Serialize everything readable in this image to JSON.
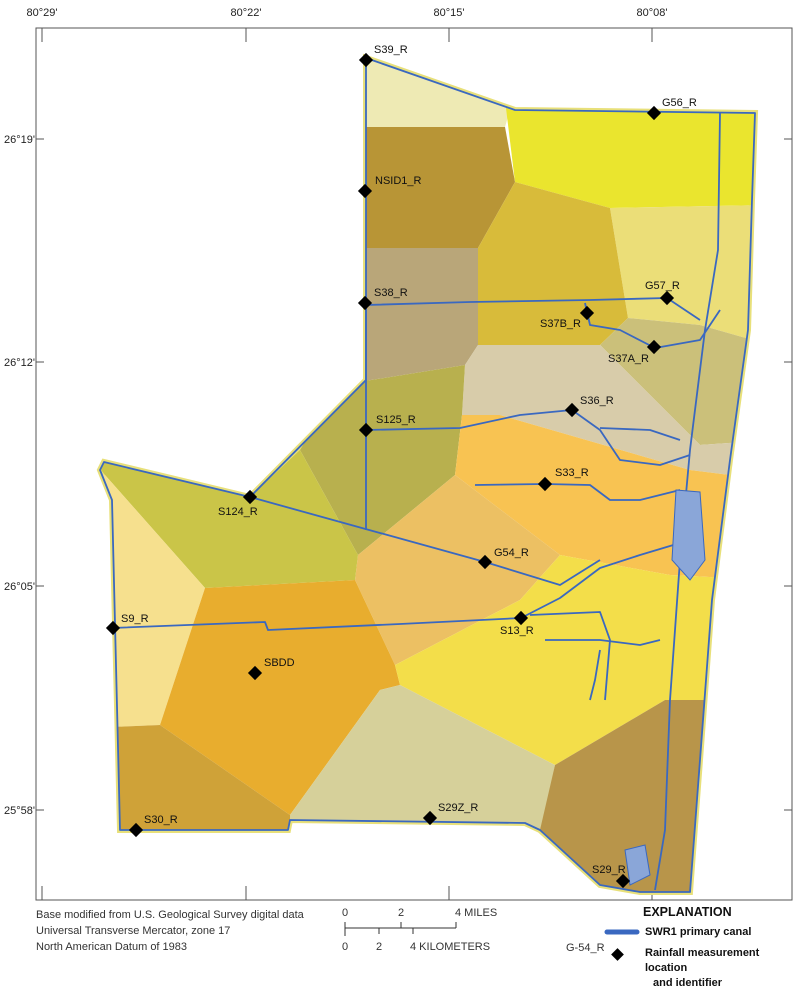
{
  "map": {
    "longitude_ticks": [
      "80°29'",
      "80°22'",
      "80°15'",
      "80°08'"
    ],
    "latitude_ticks": [
      "26°19'",
      "26°12'",
      "26°05'",
      "25°58'"
    ],
    "stations": [
      "S39_R",
      "G56_R",
      "NSID1_R",
      "G57_R",
      "S38_R",
      "S37B_R",
      "S37A_R",
      "S36_R",
      "S125_R",
      "S33_R",
      "S124_R",
      "G54_R",
      "S9_R",
      "S13_R",
      "SBDD",
      "S29Z_R",
      "S30_R",
      "S29_R"
    ],
    "region_colors": {
      "S39_R": "#eeeab4",
      "G56_R": "#eae52e",
      "NSID1_R": "#b89536",
      "G57_R": "#ebde78",
      "S37B_R": "#d8bb3a",
      "S38_R": "#b9a679",
      "S37A_R": "#cbc07a",
      "S36_R": "#d8ccaa",
      "S125_R": "#b8b04e",
      "S33_R": "#f8c352",
      "G54_R": "#ecc063",
      "S124_R": "#cac548",
      "S9_R": "#f6e08e",
      "SBDD": "#e8ad2e",
      "S13_R": "#f3de4a",
      "S29Z_R": "#d6d09a",
      "S30_R": "#cfa238",
      "S29_R": "#b8954a"
    },
    "canal_color": "#3a68c0"
  },
  "credits": [
    "Base modified from U.S. Geological Survey digital data",
    "Universal Transverse Mercator, zone 17",
    "North American Datum of 1983"
  ],
  "scale": {
    "miles_labels": [
      "0",
      "2",
      "4 MILES"
    ],
    "km_labels": [
      "0",
      "2",
      "4 KILOMETERS"
    ]
  },
  "explanation": {
    "title": "EXPLANATION",
    "canal_label": "SWR1 primary canal",
    "station_example": "G-54_R",
    "station_label_1": "Rainfall measurement location",
    "station_label_2": "and identifier"
  }
}
